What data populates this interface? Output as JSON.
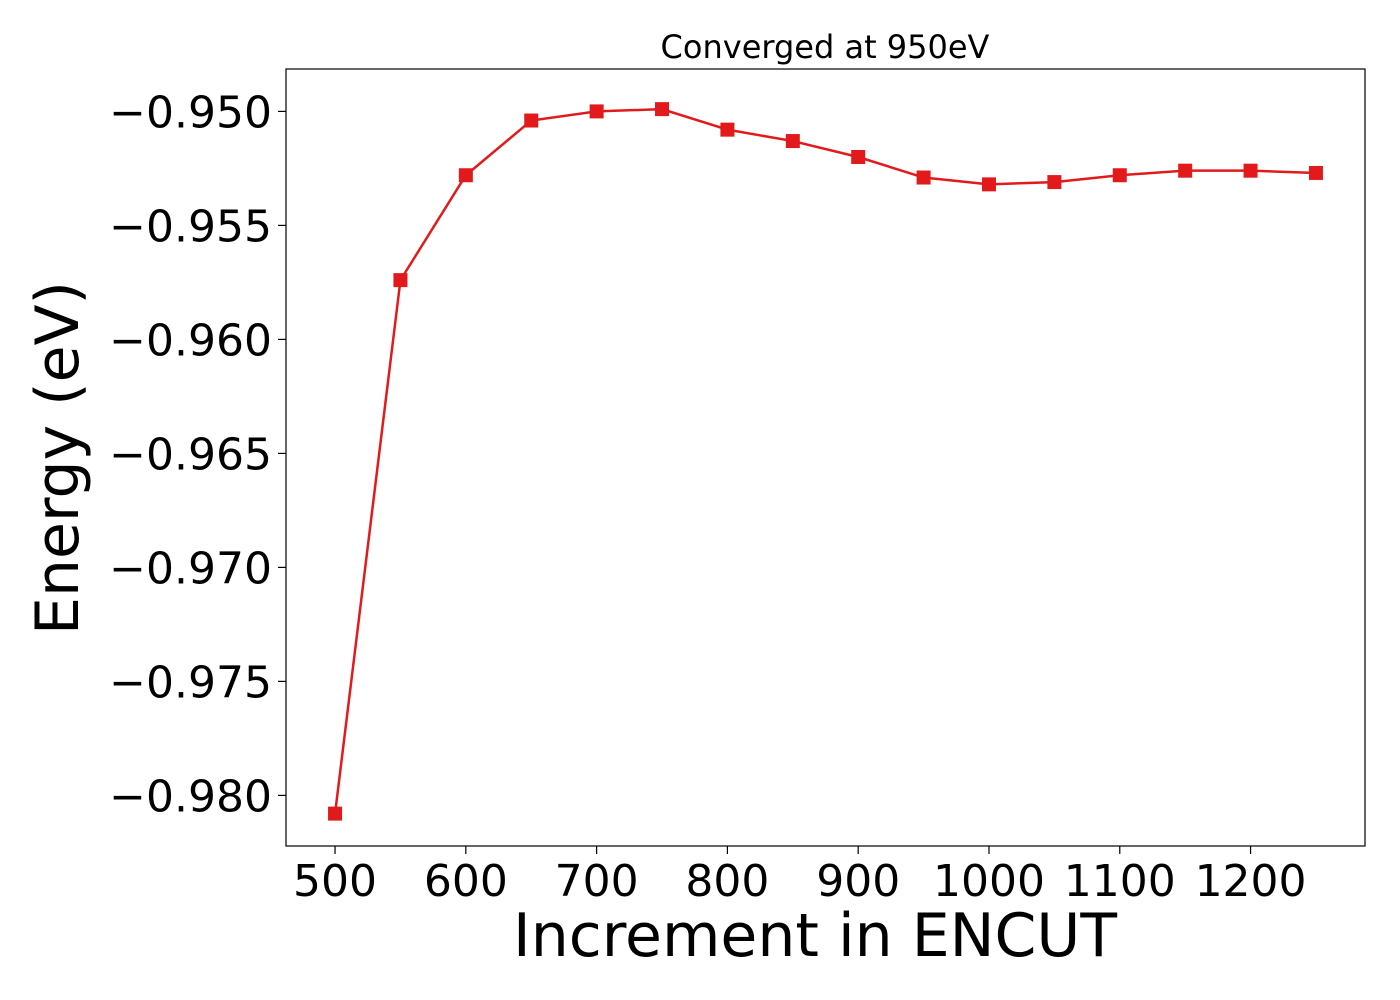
{
  "chart_data": {
    "type": "line",
    "title": "Converged at 950eV",
    "xlabel": "Increment in ENCUT",
    "ylabel": "Energy (eV)",
    "x": [
      500,
      550,
      600,
      650,
      700,
      750,
      800,
      850,
      900,
      950,
      1000,
      1050,
      1100,
      1150,
      1200,
      1250
    ],
    "series": [
      {
        "values": [
          -0.9808,
          -0.9574,
          -0.9528,
          -0.9504,
          -0.95,
          -0.9499,
          -0.9508,
          -0.9513,
          -0.952,
          -0.9529,
          -0.9532,
          -0.9531,
          -0.9528,
          -0.9526,
          -0.9526,
          -0.9527
        ],
        "color": "#e31a1c",
        "marker": "square"
      }
    ],
    "xticks": [
      500,
      600,
      700,
      800,
      900,
      1000,
      1100,
      1200
    ],
    "xtick_labels": [
      "500",
      "600",
      "700",
      "800",
      "900",
      "1000",
      "1100",
      "1200"
    ],
    "yticks": [
      -0.95,
      -0.955,
      -0.96,
      -0.965,
      -0.97,
      -0.975,
      -0.98
    ],
    "ytick_labels": [
      "−0.950",
      "−0.955",
      "−0.960",
      "−0.965",
      "−0.970",
      "−0.975",
      "−0.980"
    ],
    "xlim": [
      462.5,
      1287.5
    ],
    "ylim": [
      -0.98222,
      -0.94814
    ],
    "grid": false,
    "legend": false
  }
}
